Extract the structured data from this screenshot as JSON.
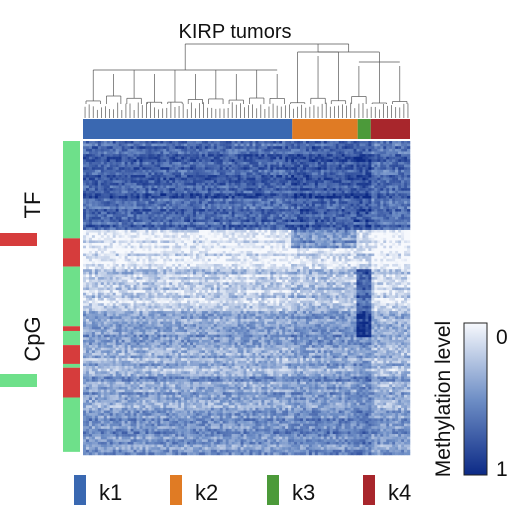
{
  "chart_data": {
    "type": "heatmap",
    "title": "KIRP tumors",
    "colorbar": {
      "label": "Methylation level",
      "min_label": "0",
      "max_label": "1",
      "min": 0,
      "max": 1
    },
    "colors": {
      "low": "#f7f9fd",
      "mid": "#6f8fc6",
      "high": "#0c2a86",
      "TF": "#d63c3c",
      "CpG": "#6ee08a",
      "k1": "#3a68b1",
      "k2": "#e07b24",
      "k3": "#4c9a3a",
      "k4": "#a8262c"
    },
    "row_annotation": {
      "labels": [
        {
          "name": "TF",
          "color_key": "TF"
        },
        {
          "name": "CpG",
          "color_key": "CpG"
        }
      ],
      "blocks": [
        {
          "type": "CpG",
          "fraction": 0.31
        },
        {
          "type": "TF",
          "fraction": 0.09
        },
        {
          "type": "CpG",
          "fraction": 0.19
        },
        {
          "type": "TF",
          "fraction": 0.015
        },
        {
          "type": "CpG",
          "fraction": 0.045
        },
        {
          "type": "TF",
          "fraction": 0.06
        },
        {
          "type": "CpG",
          "fraction": 0.012
        },
        {
          "type": "TF",
          "fraction": 0.095
        },
        {
          "type": "CpG",
          "fraction": 0.173
        }
      ]
    },
    "clusters": [
      {
        "name": "k1",
        "fraction": 0.64
      },
      {
        "name": "k2",
        "fraction": 0.2
      },
      {
        "name": "k3",
        "fraction": 0.04
      },
      {
        "name": "k4",
        "fraction": 0.12
      }
    ],
    "heatmap_matrix": {
      "n_rows": 120,
      "n_cols": 110,
      "row_band_levels": [
        {
          "fraction": 0.28,
          "level": 0.72
        },
        {
          "fraction": 0.12,
          "level": 0.08
        },
        {
          "fraction": 0.14,
          "level": 0.2
        },
        {
          "fraction": 0.1,
          "level": 0.45
        },
        {
          "fraction": 0.1,
          "level": 0.35
        },
        {
          "fraction": 0.12,
          "level": 0.42
        },
        {
          "fraction": 0.14,
          "level": 0.5
        }
      ],
      "cluster_offsets": {
        "k1": 0.0,
        "k2": 0.05,
        "k3": 0.1,
        "k4": -0.05
      }
    }
  }
}
